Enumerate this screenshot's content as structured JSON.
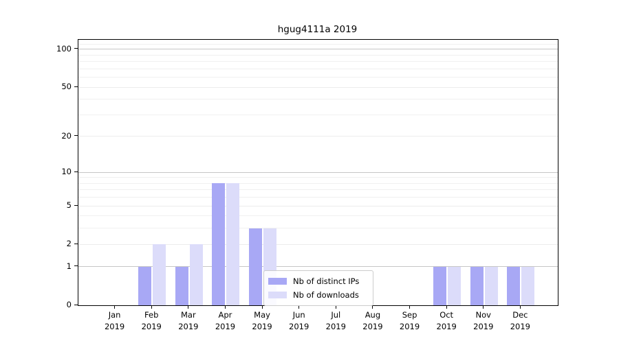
{
  "title": "hgug4111a 2019",
  "legend": {
    "items": [
      {
        "label": "Nb of distinct IPs",
        "color": "#a8a8f5"
      },
      {
        "label": "Nb of downloads",
        "color": "#dcdcfa"
      }
    ]
  },
  "chart_data": {
    "type": "bar",
    "title": "hgug4111a 2019",
    "categories": [
      "Jan",
      "Feb",
      "Mar",
      "Apr",
      "May",
      "Jun",
      "Jul",
      "Aug",
      "Sep",
      "Oct",
      "Nov",
      "Dec"
    ],
    "year_label": "2019",
    "series": [
      {
        "name": "Nb of distinct IPs",
        "color": "#a8a8f5",
        "values": [
          0,
          1,
          1,
          8,
          3,
          0,
          0,
          0,
          0,
          1,
          1,
          1
        ]
      },
      {
        "name": "Nb of downloads",
        "color": "#dcdcfa",
        "values": [
          0,
          2,
          2,
          8,
          3,
          0,
          0,
          0,
          0,
          1,
          1,
          1
        ]
      }
    ],
    "xlabel": "",
    "ylabel": "",
    "yscale": "log1p",
    "ylim": [
      0,
      119
    ],
    "yticks": [
      0,
      1,
      2,
      5,
      10,
      20,
      50,
      100
    ],
    "major_gridlines": [
      1,
      10,
      100
    ],
    "mid_gridlines": [
      2,
      5,
      20,
      50
    ],
    "minor_gridlines": [
      3,
      4,
      6,
      7,
      8,
      9,
      30,
      40,
      60,
      70,
      80,
      90,
      110
    ],
    "grid": true,
    "legend_position": "lower center"
  }
}
